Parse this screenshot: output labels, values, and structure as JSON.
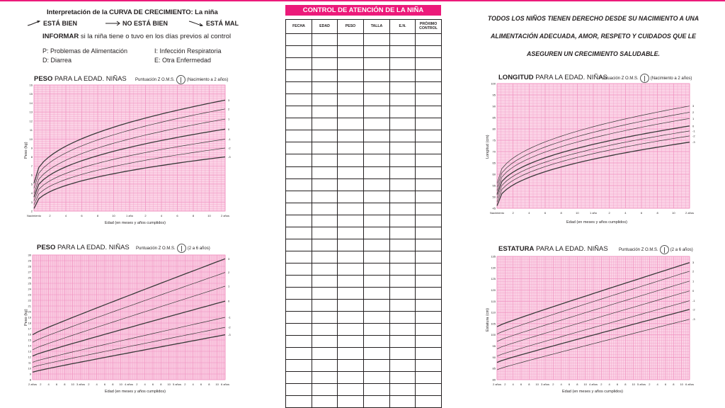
{
  "left_info": {
    "title": "Interpretación de la CURVA DE CRECIMIENTO: La niña",
    "legend": [
      {
        "label": "ESTÁ BIEN",
        "trend": "up"
      },
      {
        "label": "NO ESTÁ BIEN",
        "trend": "flat"
      },
      {
        "label": "ESTÁ MAL",
        "trend": "down"
      }
    ],
    "inform_bold": "INFORMAR",
    "inform_rest": " si la niña tiene o tuvo en los días previos al control",
    "codes": [
      "P: Problemas de Alimentación",
      "I: Infección Respiratoria",
      "D: Diarrea",
      "E: Otra Enfermedad"
    ]
  },
  "charts": {
    "peso_0_2": {
      "title_bold": "PESO",
      "title_rest": " PARA LA EDAD. NIÑAS",
      "subtitle": "Puntuación Z O.M.S.",
      "subtitle_range": "(Nacimiento a 2 años)",
      "ylabel": "Peso (kg)",
      "xlabel": "Edad (en meses y años cumplidos)",
      "xticks": [
        "Nacimiento",
        "2",
        "4",
        "6",
        "8",
        "10",
        "1 año",
        "2",
        "4",
        "6",
        "8",
        "10",
        "2 años"
      ],
      "yticks": [
        "2",
        "3",
        "4",
        "5",
        "6",
        "7",
        "8",
        "9",
        "10",
        "11",
        "12",
        "13",
        "14",
        "15",
        "16"
      ],
      "zlabels": [
        "3",
        "2",
        "1",
        "0",
        "-1",
        "-2",
        "-3"
      ]
    },
    "peso_2_6": {
      "title_bold": "PESO",
      "title_rest": " PARA LA EDAD. NIÑAS",
      "subtitle": "Puntuación Z O.M.S.",
      "subtitle_range": "(2 a 6 años)",
      "ylabel": "Peso (kg)",
      "xlabel": "Edad (en meses y años cumplidos)",
      "xticks": [
        "2 años",
        "2",
        "4",
        "6",
        "8",
        "10",
        "3 años",
        "2",
        "4",
        "6",
        "8",
        "10",
        "4 años",
        "2",
        "4",
        "6",
        "8",
        "10",
        "5 años",
        "2",
        "4",
        "6",
        "8",
        "10",
        "6 años"
      ],
      "yticks": [
        "8",
        "9",
        "10",
        "11",
        "12",
        "13",
        "14",
        "15",
        "16",
        "17",
        "18",
        "19",
        "20",
        "21",
        "22",
        "23",
        "24",
        "25",
        "26",
        "27",
        "28",
        "29",
        "30"
      ],
      "zlabels": [
        "3",
        "2",
        "1",
        "0",
        "-1",
        "-2",
        "-3"
      ]
    },
    "longitud_0_2": {
      "title_bold": "LONGITUD",
      "title_rest": " PARA LA EDAD. NIÑAS",
      "subtitle": "Puntuación Z O.M.S.",
      "subtitle_range": "(Nacimiento a 2 años)",
      "ylabel": "Longitud (cm)",
      "xlabel": "Edad (en meses y años cumplidos)",
      "xticks": [
        "Nacimiento",
        "2",
        "4",
        "6",
        "8",
        "10",
        "1 año",
        "2",
        "4",
        "6",
        "8",
        "10",
        "2 años"
      ],
      "yticks": [
        "45",
        "50",
        "55",
        "60",
        "65",
        "70",
        "75",
        "80",
        "85",
        "90",
        "95",
        "100"
      ],
      "zlabels": [
        "3",
        "2",
        "1",
        "0",
        "-1",
        "-2",
        "-3"
      ]
    },
    "estatura_2_6": {
      "title_bold": "ESTATURA",
      "title_rest": " PARA LA EDAD. NIÑAS",
      "subtitle": "Puntuación Z O.M.S.",
      "subtitle_range": "(2 a 6 años)",
      "ylabel": "Estatura (cm)",
      "xlabel": "Edad (en meses y años cumplidos)",
      "xticks": [
        "2 años",
        "2",
        "4",
        "6",
        "8",
        "10",
        "3 años",
        "2",
        "4",
        "6",
        "8",
        "10",
        "4 años",
        "2",
        "4",
        "6",
        "8",
        "10",
        "5 años",
        "2",
        "4",
        "6",
        "8",
        "10",
        "6 años"
      ],
      "yticks": [
        "80",
        "85",
        "90",
        "95",
        "100",
        "105",
        "110",
        "115",
        "120",
        "125",
        "130",
        "135"
      ],
      "zlabels": [
        "3",
        "2",
        "1",
        "0",
        "-1",
        "-2",
        "-3"
      ]
    }
  },
  "control_table": {
    "title": "CONTROL DE ATENCIÓN DE LA NIÑA",
    "headers": [
      "FECHA",
      "EDAD",
      "PESO",
      "TALLA",
      "E.N.",
      "PRÓXIMO CONTROL"
    ],
    "empty_rows": 31
  },
  "rights_text": "TODOS LOS NIÑOS TIENEN DERECHO DESDE SU NACIMIENTO A UNA ALIMENTACIÓN ADECUADA, AMOR, RESPETO Y CUIDADOS QUE LE ASEGUREN UN CRECIMIENTO SALUDABLE.",
  "colors": {
    "accent": "#ec1a7a",
    "grid_fill": "#fbd3e6",
    "grid_line": "#f08fbf",
    "curve": "#3a3a3a"
  }
}
